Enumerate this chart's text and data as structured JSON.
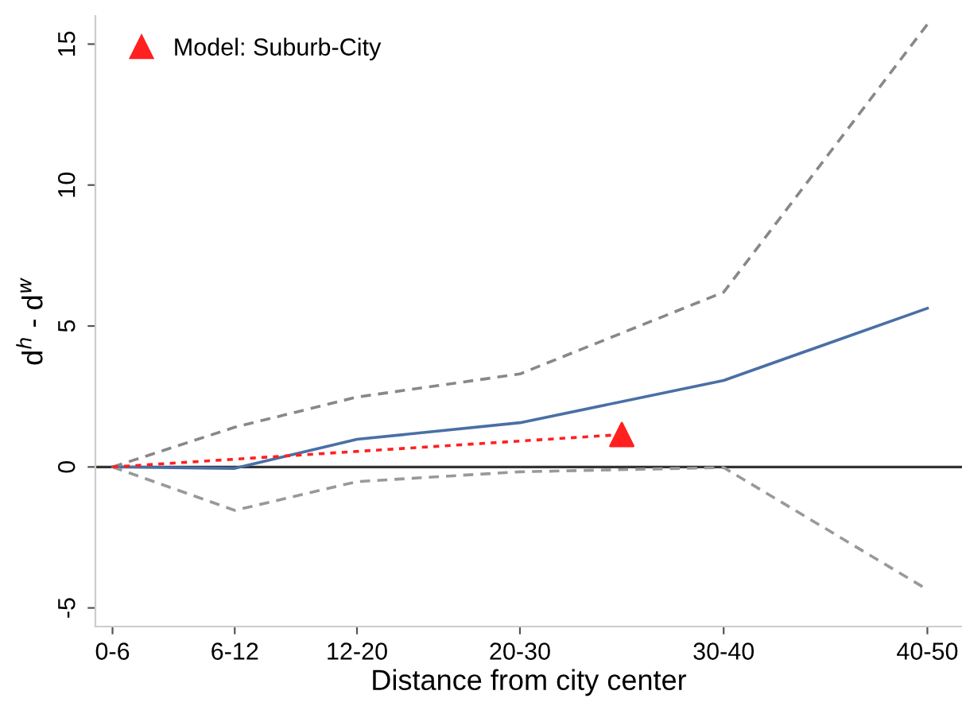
{
  "chart_data": {
    "type": "line",
    "xlabel": "Distance from city center",
    "ylabel": "d$^{h}$ - d$^{w}$",
    "categories": [
      "0-6",
      null,
      null,
      null,
      null,
      null,
      "6-12",
      null,
      null,
      null,
      null,
      null,
      "12-20",
      null,
      null,
      null,
      null,
      null,
      null,
      null,
      "20-30",
      null,
      null,
      null,
      null,
      null,
      null,
      null,
      null,
      null,
      "30-40",
      null,
      null,
      null,
      null,
      null,
      null,
      null,
      null,
      null,
      "40-50"
    ],
    "ylim": [
      -5.66,
      16.0
    ],
    "yticks": [
      -5,
      0,
      5,
      10,
      15
    ],
    "grid": false,
    "legend": "top left",
    "ref_lines": [
      {
        "axis": "y",
        "value": 0,
        "color": "#333333",
        "line_style": "solid"
      }
    ],
    "series": [
      {
        "color": "#4a6fa5",
        "values": [
          0,
          null,
          null,
          null,
          null,
          null,
          -0.05,
          null,
          null,
          null,
          null,
          null,
          0.98,
          null,
          null,
          null,
          null,
          null,
          null,
          null,
          1.57,
          null,
          null,
          null,
          null,
          null,
          null,
          null,
          null,
          null,
          3.07,
          null,
          null,
          null,
          null,
          null,
          null,
          null,
          null,
          null,
          5.63
        ],
        "line_style": "solid",
        "marker": "none"
      },
      {
        "color": "#888888",
        "values": [
          0,
          null,
          null,
          null,
          null,
          null,
          1.41,
          null,
          null,
          null,
          null,
          null,
          2.48,
          null,
          null,
          null,
          null,
          null,
          null,
          null,
          3.3,
          null,
          null,
          null,
          null,
          null,
          null,
          null,
          null,
          null,
          6.2,
          null,
          null,
          null,
          null,
          null,
          null,
          null,
          null,
          null,
          15.7
        ],
        "line_style": "dashed",
        "marker": "none"
      },
      {
        "color": "#999999",
        "values": [
          0,
          null,
          null,
          null,
          null,
          null,
          -1.54,
          null,
          null,
          null,
          null,
          null,
          -0.52,
          null,
          null,
          null,
          null,
          null,
          null,
          null,
          -0.17,
          null,
          null,
          null,
          null,
          null,
          null,
          null,
          null,
          null,
          -0.02,
          null,
          null,
          null,
          null,
          null,
          null,
          null,
          null,
          null,
          -4.35
        ],
        "line_style": "dashed",
        "marker": "none"
      },
      {
        "color": "#ff2020",
        "values": [
          0,
          null,
          null,
          null,
          null,
          null,
          null,
          null,
          null,
          null,
          null,
          null,
          null,
          null,
          null,
          null,
          null,
          null,
          null,
          null,
          null,
          null,
          null,
          null,
          null,
          1.15,
          null,
          null,
          null,
          null,
          null,
          null,
          null,
          null,
          null,
          null,
          null,
          null,
          null,
          null,
          null
        ],
        "line_style": "dotted",
        "marker": "none"
      },
      {
        "type": "scatter",
        "name": "Model: Suburb-City",
        "color": "#ff2020",
        "values": [
          null,
          null,
          null,
          null,
          null,
          null,
          null,
          null,
          null,
          null,
          null,
          null,
          null,
          null,
          null,
          null,
          null,
          null,
          null,
          null,
          null,
          null,
          null,
          null,
          null,
          1.15,
          null,
          null,
          null,
          null,
          null,
          null,
          null,
          null,
          null,
          null,
          null,
          null,
          null,
          null,
          null
        ],
        "marker": "triangle"
      }
    ]
  }
}
